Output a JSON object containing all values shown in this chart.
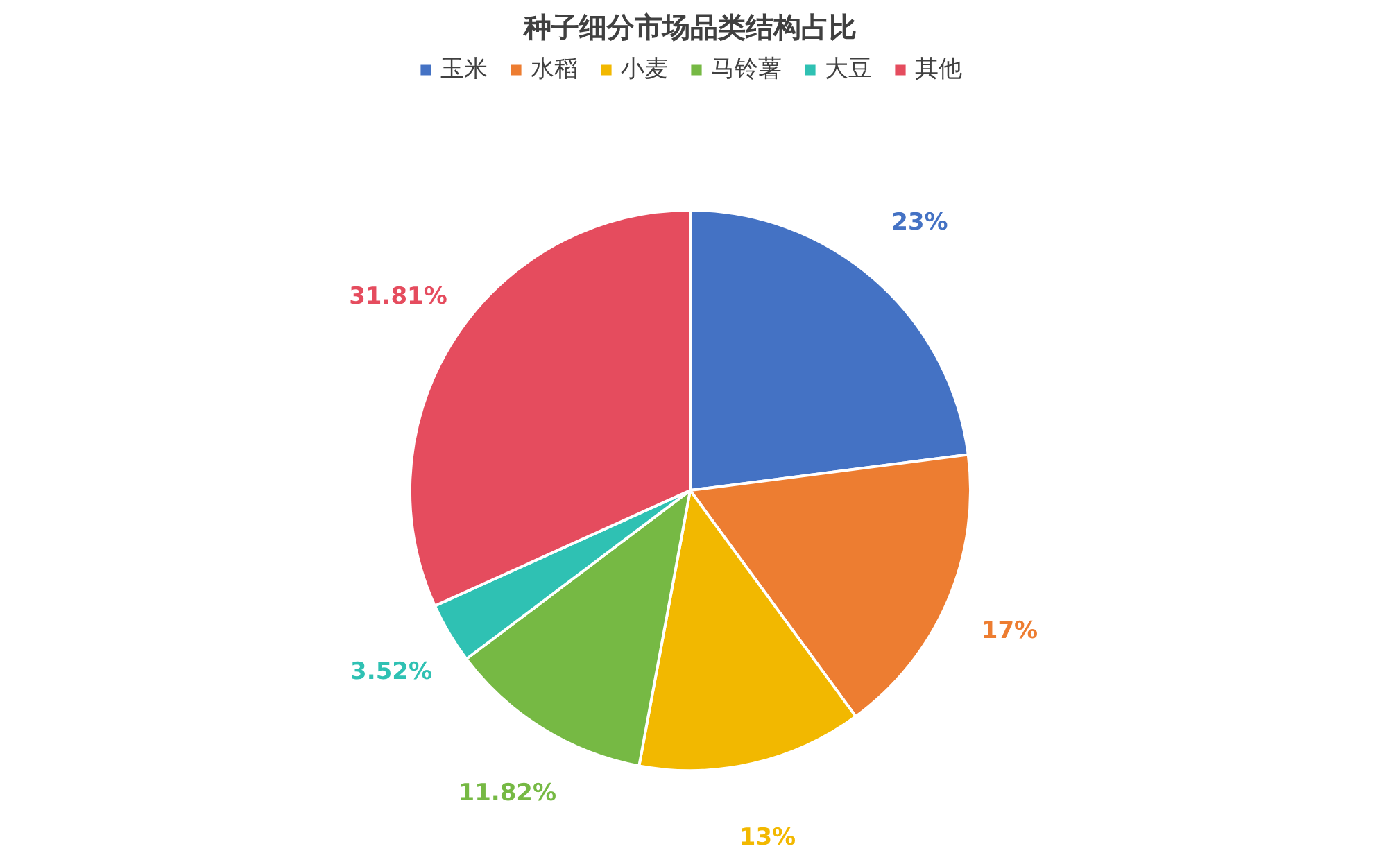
{
  "chart_data": {
    "type": "pie",
    "title": "种子细分市场品类结构占比",
    "categories": [
      "玉米",
      "水稻",
      "小麦",
      "马铃薯",
      "大豆",
      "其他"
    ],
    "values": [
      23,
      17,
      13,
      11.82,
      3.52,
      31.81
    ],
    "value_labels": [
      "23%",
      "17%",
      "13%",
      "11.82%",
      "3.52%",
      "31.81%"
    ],
    "colors": [
      "#4472c4",
      "#ed7d31",
      "#f2b800",
      "#76b944",
      "#2fc1b3",
      "#e54c5e"
    ],
    "legend": "top"
  }
}
